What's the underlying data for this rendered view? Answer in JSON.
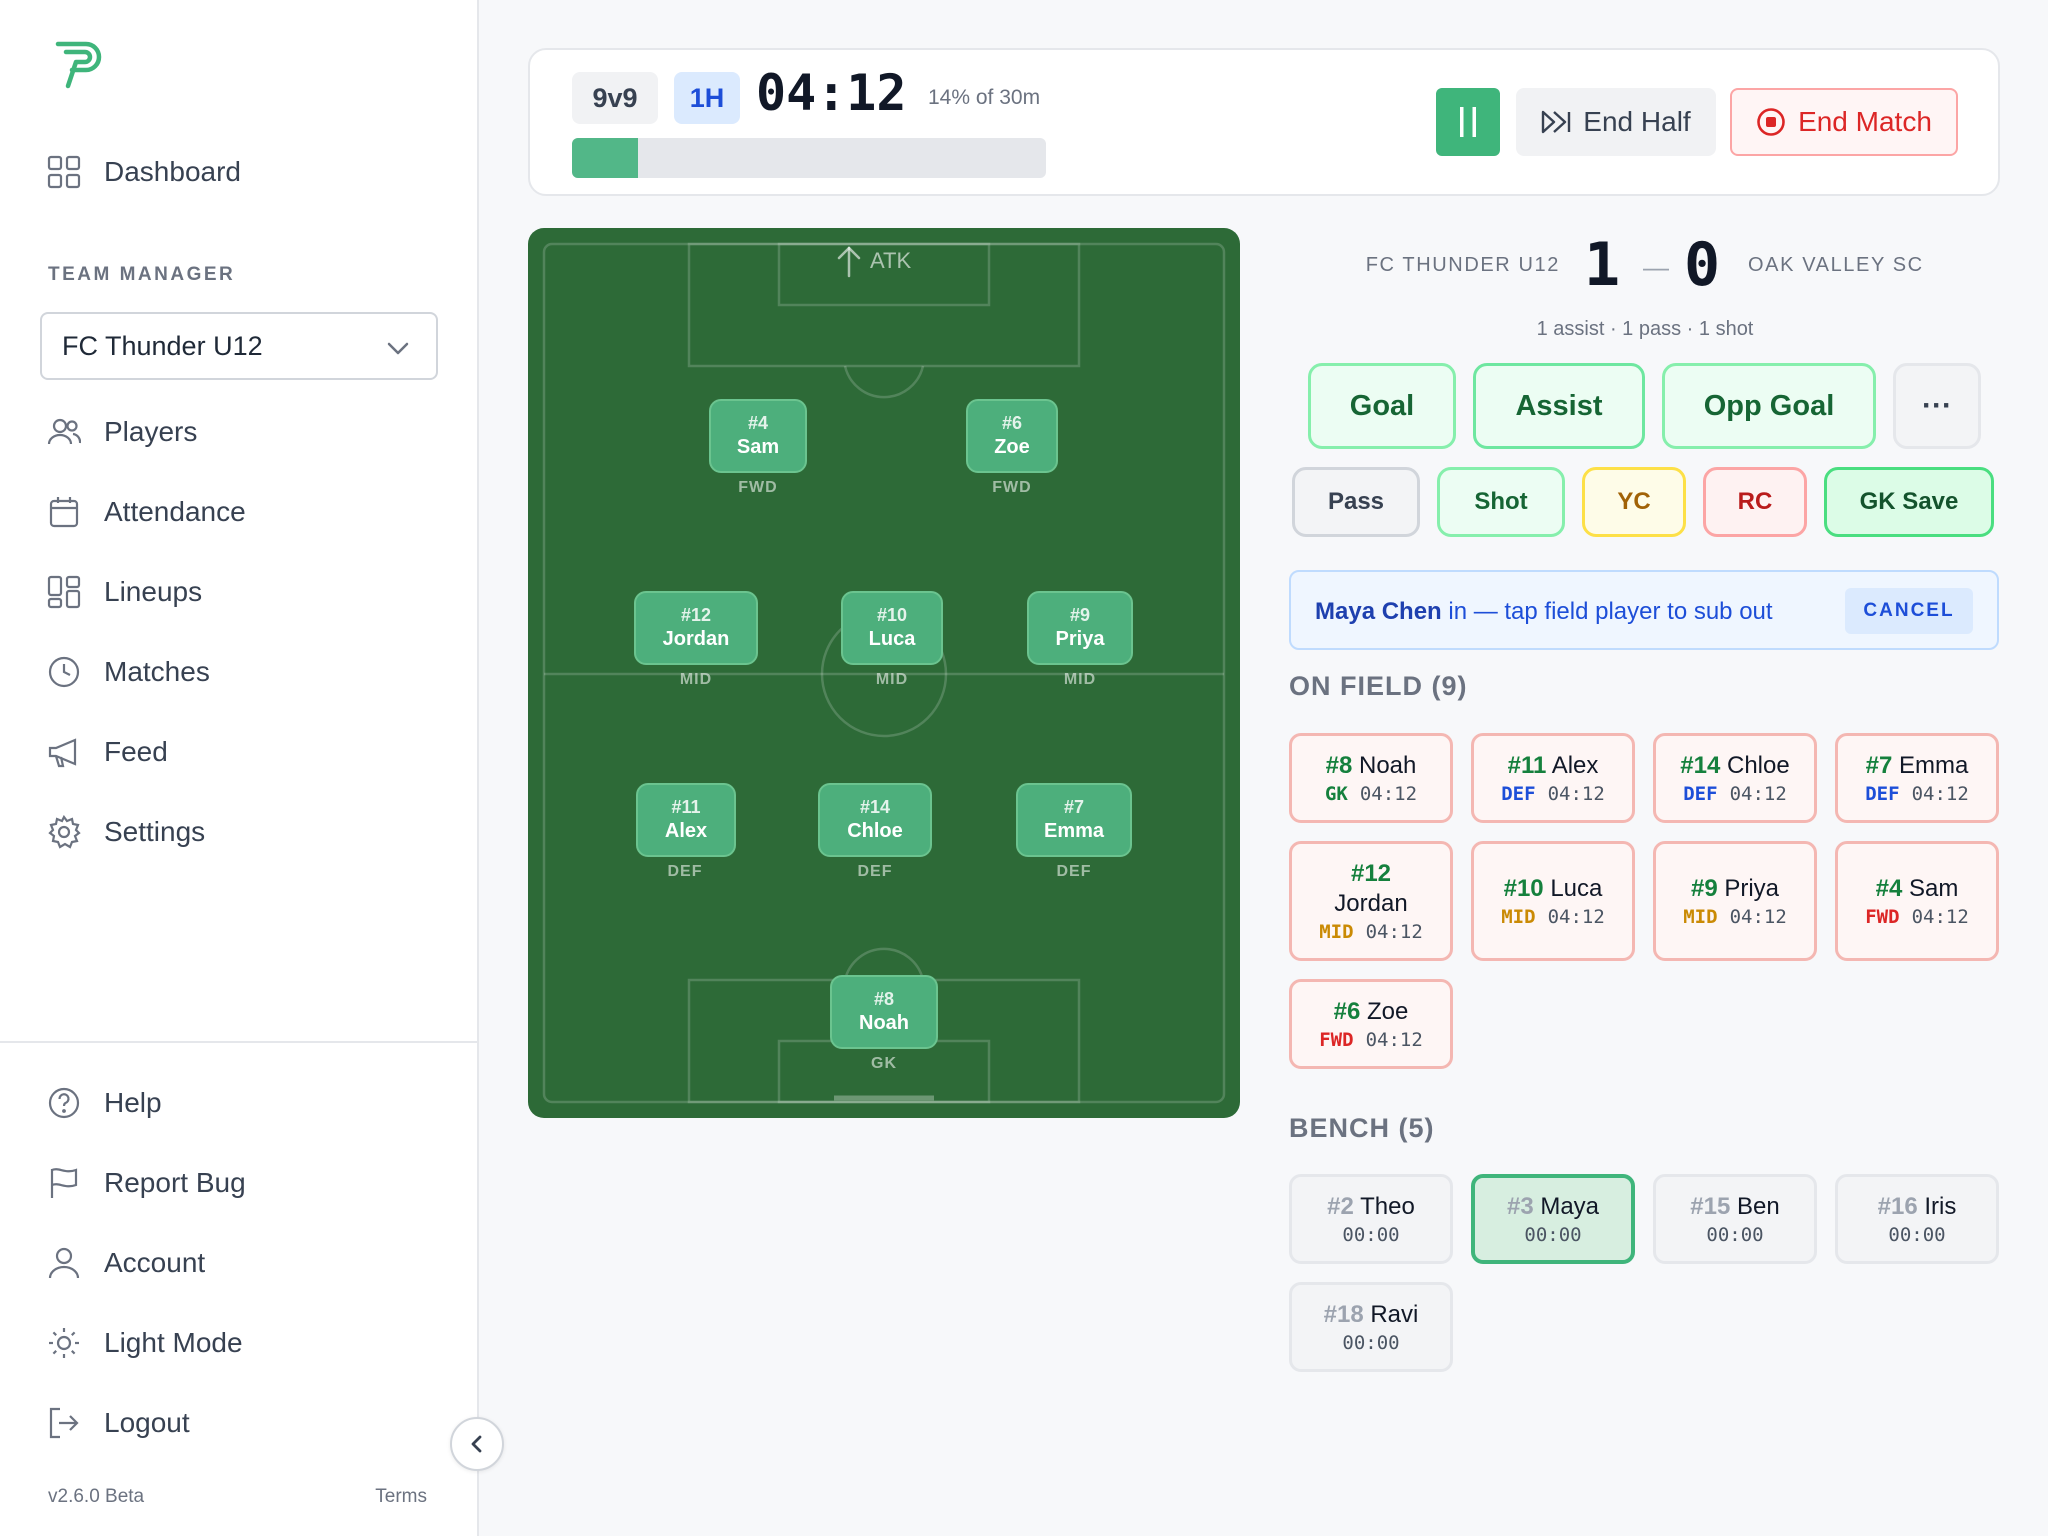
{
  "sidebar": {
    "nav_top": [
      {
        "label": "Dashboard",
        "icon": "grid-icon"
      }
    ],
    "section_label": "TEAM MANAGER",
    "team_select": "FC Thunder U12",
    "nav_team": [
      {
        "label": "Players",
        "icon": "users-icon"
      },
      {
        "label": "Attendance",
        "icon": "calendar-icon"
      },
      {
        "label": "Lineups",
        "icon": "layout-icon"
      },
      {
        "label": "Matches",
        "icon": "clock-icon"
      },
      {
        "label": "Feed",
        "icon": "megaphone-icon"
      },
      {
        "label": "Settings",
        "icon": "gear-icon"
      }
    ],
    "nav_bottom": [
      {
        "label": "Help",
        "icon": "help-icon"
      },
      {
        "label": "Report Bug",
        "icon": "flag-icon"
      },
      {
        "label": "Account",
        "icon": "user-icon"
      },
      {
        "label": "Light Mode",
        "icon": "sun-icon"
      },
      {
        "label": "Logout",
        "icon": "logout-icon"
      }
    ],
    "version": "v2.6.0 Beta",
    "terms": "Terms"
  },
  "match": {
    "format": "9v9",
    "half": "1H",
    "clock": "04:12",
    "clock_pct": "14% of 30m",
    "progress": 0.14,
    "end_half_label": "End Half",
    "end_match_label": "End Match",
    "accent": "#3fb57b"
  },
  "pitch": {
    "atk_label": "ATK",
    "players": [
      {
        "num": "#4",
        "name": "Sam",
        "pos": "FWD"
      },
      {
        "num": "#6",
        "name": "Zoe",
        "pos": "FWD"
      },
      {
        "num": "#12",
        "name": "Jordan",
        "pos": "MID"
      },
      {
        "num": "#10",
        "name": "Luca",
        "pos": "MID"
      },
      {
        "num": "#9",
        "name": "Priya",
        "pos": "MID"
      },
      {
        "num": "#11",
        "name": "Alex",
        "pos": "DEF"
      },
      {
        "num": "#14",
        "name": "Chloe",
        "pos": "DEF"
      },
      {
        "num": "#7",
        "name": "Emma",
        "pos": "DEF"
      },
      {
        "num": "#8",
        "name": "Noah",
        "pos": "GK"
      }
    ]
  },
  "score": {
    "home_team": "FC THUNDER U12",
    "home_score": "1",
    "dash": "—",
    "away_score": "0",
    "away_team": "OAK VALLEY SC",
    "stat_line": "1 assist · 1 pass · 1 shot"
  },
  "events": {
    "goal": "Goal",
    "assist": "Assist",
    "opp_goal": "Opp Goal",
    "more": "···",
    "pass": "Pass",
    "shot": "Shot",
    "yc": "YC",
    "rc": "RC",
    "gk_save": "GK Save"
  },
  "sub_banner": {
    "player": "Maya Chen",
    "text": " in — tap field player to sub out",
    "cancel": "CANCEL"
  },
  "on_field": {
    "heading": "ON FIELD (9)",
    "players": [
      {
        "num": "#8",
        "name": "Noah",
        "pos": "GK",
        "time": "04:12"
      },
      {
        "num": "#11",
        "name": "Alex",
        "pos": "DEF",
        "time": "04:12"
      },
      {
        "num": "#14",
        "name": "Chloe",
        "pos": "DEF",
        "time": "04:12"
      },
      {
        "num": "#7",
        "name": "Emma",
        "pos": "DEF",
        "time": "04:12"
      },
      {
        "num": "#12",
        "name": "Jordan",
        "pos": "MID",
        "time": "04:12"
      },
      {
        "num": "#10",
        "name": "Luca",
        "pos": "MID",
        "time": "04:12"
      },
      {
        "num": "#9",
        "name": "Priya",
        "pos": "MID",
        "time": "04:12"
      },
      {
        "num": "#4",
        "name": "Sam",
        "pos": "FWD",
        "time": "04:12"
      },
      {
        "num": "#6",
        "name": "Zoe",
        "pos": "FWD",
        "time": "04:12"
      }
    ]
  },
  "bench": {
    "heading": "BENCH (5)",
    "players": [
      {
        "num": "#2",
        "name": "Theo",
        "time": "00:00",
        "selected": false
      },
      {
        "num": "#3",
        "name": "Maya",
        "time": "00:00",
        "selected": true
      },
      {
        "num": "#15",
        "name": "Ben",
        "time": "00:00",
        "selected": false
      },
      {
        "num": "#16",
        "name": "Iris",
        "time": "00:00",
        "selected": false
      },
      {
        "num": "#18",
        "name": "Ravi",
        "time": "00:00",
        "selected": false
      }
    ]
  }
}
